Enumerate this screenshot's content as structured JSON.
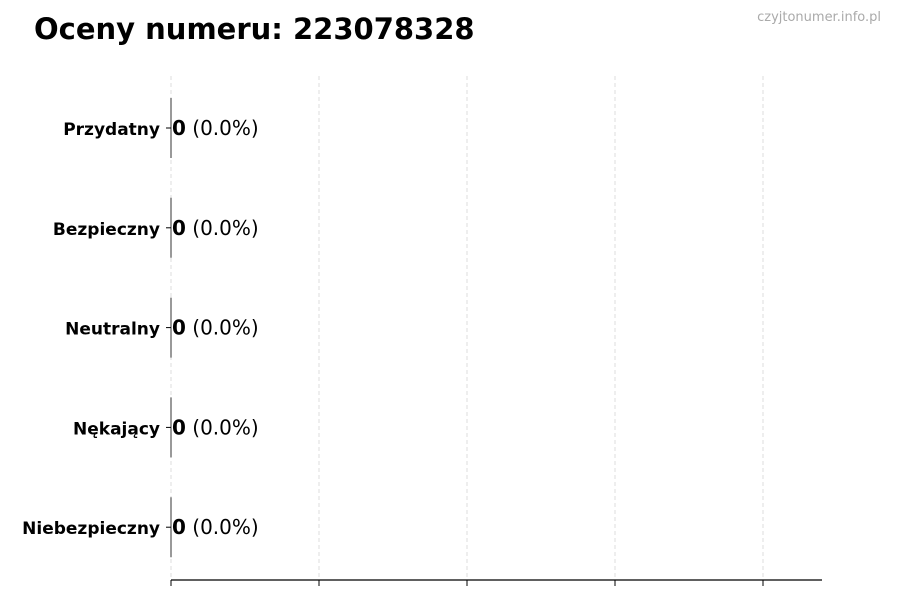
{
  "chart_data": {
    "type": "bar",
    "orientation": "horizontal",
    "title": "Oceny numeru: 223078328",
    "watermark": "czyjtonumer.info.pl",
    "categories": [
      "Przydatny",
      "Bezpieczny",
      "Neutralny",
      "Nękający",
      "Niebezpieczny"
    ],
    "values": [
      0,
      0,
      0,
      0,
      0
    ],
    "labels": [
      "0",
      "0",
      "0",
      "0",
      "0"
    ],
    "percent_labels": [
      "(0.0%)",
      "(0.0%)",
      "(0.0%)",
      "(0.0%)",
      "(0.0%)"
    ],
    "xlabel": "",
    "ylabel": "",
    "x_tick_labels": [],
    "grid": "vertical dashed",
    "legend": "none",
    "colors": {
      "bar_edge": "#333333",
      "grid": "#dddddd",
      "axis": "#000000",
      "watermark": "#aaaaaa"
    }
  }
}
